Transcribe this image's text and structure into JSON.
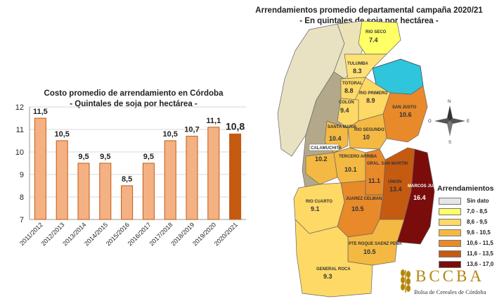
{
  "chart_data": [
    {
      "type": "bar",
      "title": "Costo promedio de arrendamiento en Córdoba",
      "subtitle": "- Quintales de soja por hectárea -",
      "categories": [
        "2011/2012",
        "2012/2013",
        "2013/2014",
        "2014/2015",
        "2015/2016",
        "2016/2017",
        "2017/2018",
        "2018/2019",
        "2019/2020",
        "2020/2021"
      ],
      "values": [
        11.5,
        10.5,
        9.5,
        9.5,
        8.5,
        9.5,
        10.5,
        10.7,
        11.1,
        10.8
      ],
      "value_labels": [
        "11,5",
        "10,5",
        "9,5",
        "9,5",
        "8,5",
        "9,5",
        "10,5",
        "10,7",
        "11,1",
        "10,8"
      ],
      "ylim": [
        7,
        12
      ],
      "yticks": [
        7,
        8,
        9,
        10,
        11,
        12
      ],
      "highlight_index": 9,
      "colors": {
        "bar": "#f4b183",
        "bar_border": "#c55a11",
        "highlight": "#c55a11",
        "grid": "#d9d9d9"
      },
      "grid": true
    },
    {
      "type": "map",
      "title": "Arrendamientos promedio departamental campaña 2020/21",
      "subtitle": "- En quintales de soja por hectárea -",
      "departments": [
        {
          "name": "RIO SECO",
          "value": "7.4"
        },
        {
          "name": "TULUMBA",
          "value": "8.3"
        },
        {
          "name": "TOTORAL",
          "value": "8.8"
        },
        {
          "name": "RIO PRIMERO",
          "value": "8.9"
        },
        {
          "name": "COLON",
          "value": "9.4"
        },
        {
          "name": "SAN JUSTO",
          "value": "10.6"
        },
        {
          "name": "SANTA MARIA",
          "value": "10.4"
        },
        {
          "name": "RIO SEGUNDO",
          "value": "10"
        },
        {
          "name": "CALAMUCHITA",
          "value": "10.2"
        },
        {
          "name": "TERCERO ARRIBA",
          "value": "10.1"
        },
        {
          "name": "GRAL. SAN MARTIN",
          "value": "11.1"
        },
        {
          "name": "UNION",
          "value": "13.4"
        },
        {
          "name": "MARCOS JUAREZ",
          "value": "16.4"
        },
        {
          "name": "RIO CUARTO",
          "value": "9.1"
        },
        {
          "name": "JUAREZ CELMAN",
          "value": "10.5"
        },
        {
          "name": "PTE ROQUE SAENZ PEÑA",
          "value": "10.5"
        },
        {
          "name": "GENERAL ROCA",
          "value": "9.3"
        }
      ],
      "compass": [
        "N",
        "E",
        "O",
        "S"
      ],
      "legend": {
        "title": "Arrendamientos",
        "items": [
          {
            "label": "Sin dato",
            "color": "#e7e6e6"
          },
          {
            "label": "7,0 - 8,5",
            "color": "#ffff66"
          },
          {
            "label": "8,6 - 9,5",
            "color": "#ffd966"
          },
          {
            "label": "9,6 - 10,5",
            "color": "#f4b942"
          },
          {
            "label": "10,6 - 11,5",
            "color": "#e8892a"
          },
          {
            "label": "11,6 - 13,5",
            "color": "#c55a11"
          },
          {
            "label": "13,6 - 17,0",
            "color": "#7b0c0c"
          }
        ]
      }
    }
  ],
  "logo": {
    "text": "BCCBA",
    "subtitle": "Bolsa de Cereales de Córdoba"
  }
}
